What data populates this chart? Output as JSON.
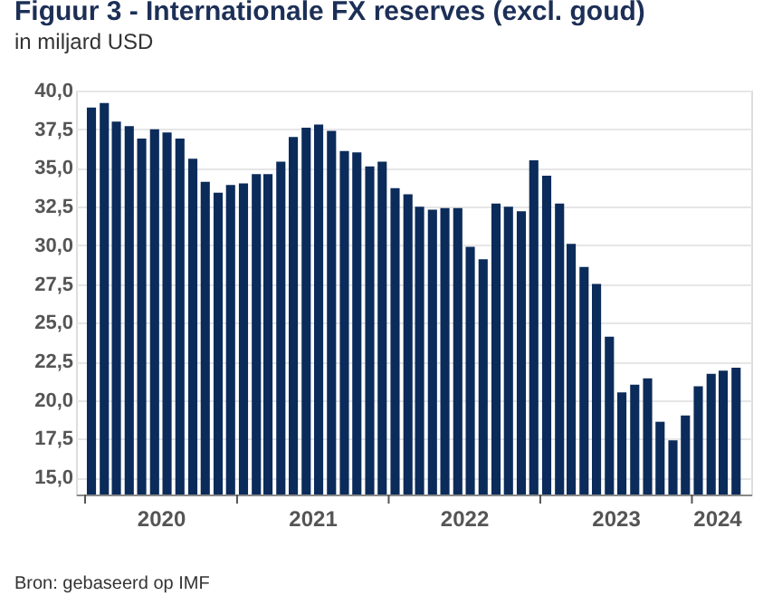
{
  "chart_data": {
    "type": "bar",
    "title": "Figuur 3 - Internationale FX reserves (excl. goud)",
    "subtitle": "in miljard USD",
    "x": [
      "2020-01",
      "2020-02",
      "2020-03",
      "2020-04",
      "2020-05",
      "2020-06",
      "2020-07",
      "2020-08",
      "2020-09",
      "2020-10",
      "2020-11",
      "2020-12",
      "2021-01",
      "2021-02",
      "2021-03",
      "2021-04",
      "2021-05",
      "2021-06",
      "2021-07",
      "2021-08",
      "2021-09",
      "2021-10",
      "2021-11",
      "2021-12",
      "2022-01",
      "2022-02",
      "2022-03",
      "2022-04",
      "2022-05",
      "2022-06",
      "2022-07",
      "2022-08",
      "2022-09",
      "2022-10",
      "2022-11",
      "2022-12",
      "2023-01",
      "2023-02",
      "2023-03",
      "2023-04",
      "2023-05",
      "2023-06",
      "2023-07",
      "2023-08",
      "2023-09",
      "2023-10",
      "2023-11",
      "2023-12",
      "2024-01",
      "2024-02",
      "2024-03",
      "2024-04"
    ],
    "values": [
      38.9,
      39.2,
      38.0,
      37.7,
      36.9,
      37.5,
      37.3,
      36.9,
      35.6,
      34.1,
      33.4,
      33.9,
      34.0,
      34.6,
      34.6,
      35.4,
      37.0,
      37.6,
      37.8,
      37.4,
      36.1,
      36.0,
      35.1,
      35.4,
      33.7,
      33.3,
      32.5,
      32.3,
      32.4,
      32.4,
      29.9,
      29.1,
      32.7,
      32.5,
      32.2,
      35.5,
      34.5,
      32.7,
      30.1,
      28.6,
      27.5,
      24.1,
      20.5,
      21.0,
      21.4,
      18.6,
      17.4,
      19.0,
      20.9,
      21.7,
      21.9,
      22.1
    ],
    "color": "#0b2b5a",
    "ylim": [
      13.9,
      40
    ],
    "yticks": [
      {
        "value": 15,
        "label": "15,0"
      },
      {
        "value": 17.5,
        "label": "17,5"
      },
      {
        "value": 20,
        "label": "20,0"
      },
      {
        "value": 22.5,
        "label": "22,5"
      },
      {
        "value": 25,
        "label": "25,0"
      },
      {
        "value": 27.5,
        "label": "27,5"
      },
      {
        "value": 30,
        "label": "30,0"
      },
      {
        "value": 32.5,
        "label": "32,5"
      },
      {
        "value": 35,
        "label": "35,0"
      },
      {
        "value": 37.5,
        "label": "37,5"
      },
      {
        "value": 40,
        "label": "40,0"
      }
    ],
    "xlim": [
      "2020-01-01",
      "2024-05-01"
    ],
    "xticks": [
      {
        "value": "2020-01-01",
        "label": null
      },
      {
        "value": "2020-07-01",
        "label": "2020"
      },
      {
        "value": "2021-01-01",
        "label": null
      },
      {
        "value": "2021-07-01",
        "label": "2021"
      },
      {
        "value": "2022-01-01",
        "label": null
      },
      {
        "value": "2022-07-01",
        "label": "2022"
      },
      {
        "value": "2023-01-01",
        "label": null
      },
      {
        "value": "2023-07-01",
        "label": "2023"
      },
      {
        "value": "2024-01-01",
        "label": null
      },
      {
        "value": "2024-03-01",
        "label": "2024"
      }
    ],
    "grid": "y",
    "annotations": [
      "Bron: gebaseerd op IMF"
    ]
  }
}
